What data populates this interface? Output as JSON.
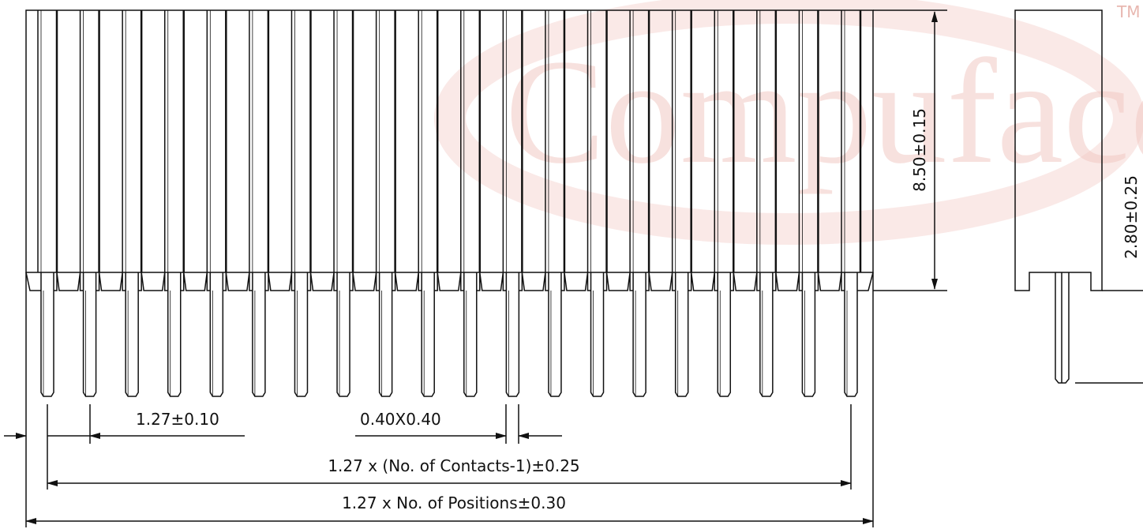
{
  "watermark": {
    "text": "Compuface",
    "trademark": "TM"
  },
  "dimensions": {
    "height": "8.50±0.15",
    "side_height": "2.80±0.25",
    "pitch": "1.27±0.10",
    "pin_size": "0.40X0.40",
    "contacts_span": "1.27 x (No. of Contacts-1)±0.25",
    "overall_length": "1.27 x No. of Positions±0.30"
  }
}
